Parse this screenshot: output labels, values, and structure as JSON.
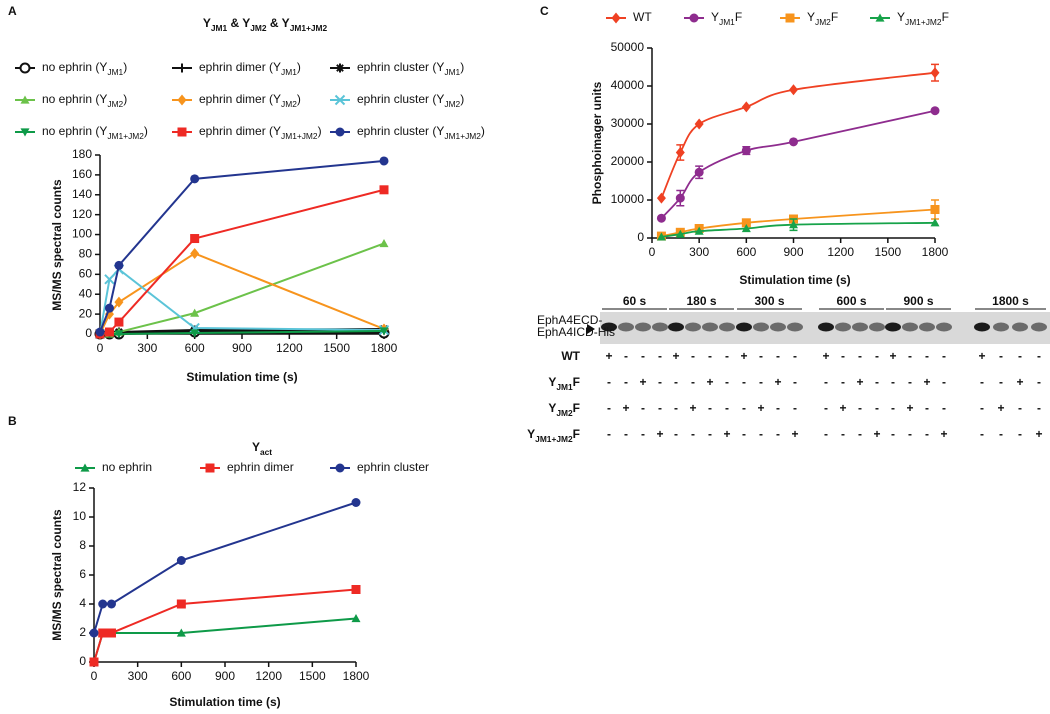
{
  "chart_data": [
    {
      "type": "line",
      "panel_label": "A",
      "title": [
        "Y",
        "JM1",
        " & Y",
        "JM2",
        " & Y",
        "JM1+JM2"
      ],
      "x_label": "Stimulation time (s)",
      "y_label": "MS/MS spectral counts",
      "legend": "top",
      "x": [
        0,
        60,
        120,
        600,
        1800
      ],
      "xlim": [
        0,
        1800
      ],
      "xticks": [
        0,
        300,
        600,
        900,
        1200,
        1500,
        1800
      ],
      "ylim": [
        0,
        180
      ],
      "yticks": [
        0,
        20,
        40,
        60,
        80,
        100,
        120,
        140,
        160,
        180
      ],
      "series": [
        {
          "name": [
            "no ephrin (Y",
            "JM1",
            ")"
          ],
          "color": "#111111",
          "marker": "circle-open",
          "values": [
            0,
            0,
            0,
            2,
            1
          ]
        },
        {
          "name": [
            "ephrin dimer (Y",
            "JM1",
            ")"
          ],
          "color": "#111111",
          "marker": "plus",
          "values": [
            0,
            0,
            1,
            3,
            4
          ]
        },
        {
          "name": [
            "ephrin cluster (Y",
            "JM1",
            ")"
          ],
          "color": "#111111",
          "marker": "star",
          "values": [
            1,
            2,
            2,
            4,
            5
          ]
        },
        {
          "name": [
            "no ephrin (Y",
            "JM2",
            ")"
          ],
          "color": "#6cc24a",
          "marker": "triangle",
          "values": [
            0,
            0,
            2,
            21,
            91
          ]
        },
        {
          "name": [
            "ephrin dimer (Y",
            "JM2",
            ")"
          ],
          "color": "#f7941d",
          "marker": "diamond",
          "values": [
            0,
            20,
            32,
            81,
            5
          ]
        },
        {
          "name": [
            "ephrin cluster (Y",
            "JM2",
            ")"
          ],
          "color": "#5bc4d8",
          "marker": "x",
          "values": [
            0,
            55,
            65,
            6,
            4
          ]
        },
        {
          "name": [
            "no ephrin (Y",
            "JM1+JM2",
            ")"
          ],
          "color": "#0e9a48",
          "marker": "triangle-down",
          "values": [
            0,
            0,
            0,
            1,
            3
          ]
        },
        {
          "name": [
            "ephrin dimer (Y",
            "JM1+JM2",
            ")"
          ],
          "color": "#ee2a24",
          "marker": "square",
          "values": [
            0,
            2,
            12,
            96,
            145
          ]
        },
        {
          "name": [
            "ephrin cluster (Y",
            "JM1+JM2",
            ")"
          ],
          "color": "#23358f",
          "marker": "circle",
          "values": [
            2,
            26,
            69,
            156,
            174
          ]
        }
      ]
    },
    {
      "type": "line",
      "panel_label": "B",
      "title": [
        "Y",
        "act"
      ],
      "x_label": "Stimulation time (s)",
      "y_label": "MS/MS spectral counts",
      "legend": "top",
      "x": [
        0,
        60,
        120,
        600,
        1800
      ],
      "xlim": [
        0,
        1800
      ],
      "xticks": [
        0,
        300,
        600,
        900,
        1200,
        1500,
        1800
      ],
      "ylim": [
        0,
        12
      ],
      "yticks": [
        0,
        2,
        4,
        6,
        8,
        10,
        12
      ],
      "series": [
        {
          "name": [
            "no ephrin"
          ],
          "color": "#0e9a48",
          "marker": "triangle",
          "values": [
            0,
            2,
            2,
            2,
            3
          ]
        },
        {
          "name": [
            "ephrin dimer"
          ],
          "color": "#ee2a24",
          "marker": "square",
          "values": [
            0,
            2,
            2,
            4,
            5
          ]
        },
        {
          "name": [
            "ephrin cluster"
          ],
          "color": "#23358f",
          "marker": "circle",
          "values": [
            2,
            4,
            4,
            7,
            11
          ]
        }
      ]
    },
    {
      "type": "curve",
      "panel_label": "C",
      "x_label": "Stimulation time (s)",
      "y_label": "Phosphoimager  units",
      "legend": "top",
      "x": [
        60,
        180,
        300,
        600,
        900,
        1800
      ],
      "xlim": [
        0,
        1800
      ],
      "xticks": [
        0,
        300,
        600,
        900,
        1200,
        1500,
        1800
      ],
      "ylim": [
        0,
        50000
      ],
      "yticks": [
        0,
        10000,
        20000,
        30000,
        40000,
        50000
      ],
      "series": [
        {
          "name": [
            "WT"
          ],
          "color": "#ef4123",
          "marker": "diamond",
          "values": [
            10500,
            22500,
            30000,
            34500,
            39000,
            43500
          ],
          "errors": [
            null,
            2000,
            null,
            null,
            null,
            2200
          ]
        },
        {
          "name": [
            "Y",
            "JM1",
            "F"
          ],
          "color": "#8e2c8e",
          "marker": "circle",
          "values": [
            5200,
            10500,
            17300,
            23000,
            25300,
            33500
          ],
          "errors": [
            null,
            2000,
            1600,
            1000,
            null,
            null
          ]
        },
        {
          "name": [
            "Y",
            "JM2",
            "F"
          ],
          "color": "#f7941d",
          "marker": "square",
          "values": [
            500,
            1500,
            2500,
            4000,
            5000,
            7500
          ],
          "errors": [
            null,
            null,
            null,
            null,
            null,
            2500
          ]
        },
        {
          "name": [
            "Y",
            "JM1+JM2",
            "F"
          ],
          "color": "#17a34a",
          "marker": "triangle",
          "values": [
            300,
            1000,
            1800,
            2500,
            3500,
            4000
          ],
          "errors": [
            null,
            null,
            null,
            null,
            1500,
            null
          ]
        }
      ]
    }
  ],
  "blot": {
    "time_labels": [
      "60 s",
      "180 s",
      "300 s",
      "600 s",
      "900 s",
      "1800 s"
    ],
    "band_label": [
      "EphA4ECD-",
      "EphA4ICD-His"
    ],
    "rows": [
      {
        "label": [
          "WT"
        ],
        "cells": [
          "+",
          "-",
          "-",
          "-",
          "+",
          "-",
          "-",
          "-",
          "+",
          "-",
          "-",
          "-",
          "+",
          "-",
          "-",
          "-",
          "+",
          "-",
          "-",
          "-",
          "+",
          "-",
          "-",
          "-"
        ]
      },
      {
        "label": [
          "Y",
          "JM1",
          "F"
        ],
        "cells": [
          "-",
          "-",
          "+",
          "-",
          "-",
          "-",
          "+",
          "-",
          "-",
          "-",
          "+",
          "-",
          "-",
          "-",
          "+",
          "-",
          "-",
          "-",
          "+",
          "-",
          "-",
          "-",
          "+",
          "-"
        ]
      },
      {
        "label": [
          "Y",
          "JM2",
          "F"
        ],
        "cells": [
          "-",
          "+",
          "-",
          "-",
          "-",
          "+",
          "-",
          "-",
          "-",
          "+",
          "-",
          "-",
          "-",
          "+",
          "-",
          "-",
          "-",
          "+",
          "-",
          "-",
          "-",
          "+",
          "-",
          "-"
        ]
      },
      {
        "label": [
          "Y",
          "JM1+JM2",
          "F"
        ],
        "cells": [
          "-",
          "-",
          "-",
          "+",
          "-",
          "-",
          "-",
          "+",
          "-",
          "-",
          "-",
          "+",
          "-",
          "-",
          "-",
          "+",
          "-",
          "-",
          "-",
          "+",
          "-",
          "-",
          "-",
          "+"
        ]
      }
    ]
  }
}
